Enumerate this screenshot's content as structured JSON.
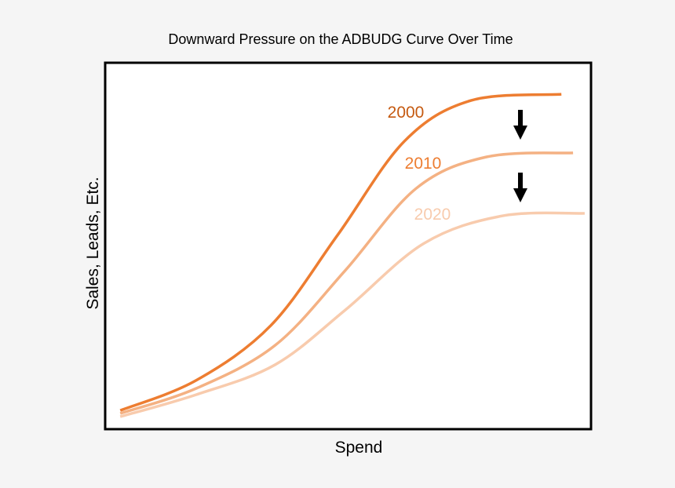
{
  "chart_data": {
    "type": "line",
    "title": "Downward Pressure on the ADBUDG Curve Over Time",
    "xlabel": "Spend",
    "ylabel": "Sales, Leads, Etc.",
    "xlim": [
      0,
      100
    ],
    "ylim": [
      0,
      100
    ],
    "grid": false,
    "ticks": false,
    "series": [
      {
        "name": "2000",
        "color": "#ED7D31",
        "label_color": "#C55A11",
        "x": [
          3.1,
          18.7,
          34.1,
          47.8,
          61.6,
          75.3,
          93.9
        ],
        "y": [
          5.1,
          13.3,
          28.3,
          52.9,
          78.6,
          89.7,
          91.4
        ]
      },
      {
        "name": "2010",
        "color": "#F4B183",
        "label_color": "#ED7D31",
        "x": [
          3.1,
          18.7,
          35.0,
          49.4,
          64.0,
          78.5,
          96.3
        ],
        "y": [
          4.3,
          11.1,
          22.9,
          43.3,
          65.7,
          74.3,
          75.4
        ]
      },
      {
        "name": "2020",
        "color": "#F8CBAD",
        "label_color": "#F8CBAD",
        "x": [
          3.1,
          18.7,
          35.0,
          49.4,
          65.6,
          81.7,
          98.7
        ],
        "y": [
          3.4,
          9.4,
          17.6,
          32.5,
          50.7,
          58.2,
          58.9
        ]
      }
    ],
    "annotations": [
      "down-arrow",
      "down-arrow"
    ]
  }
}
